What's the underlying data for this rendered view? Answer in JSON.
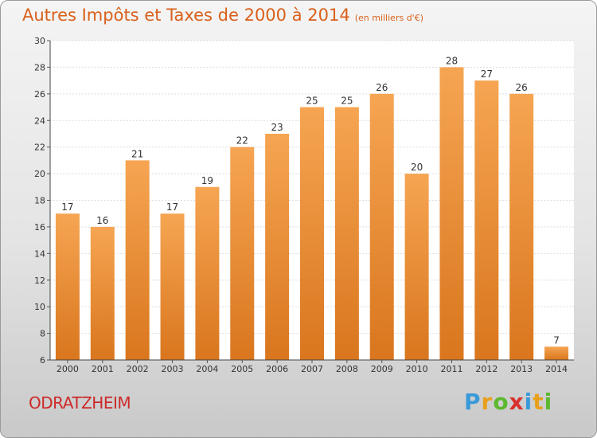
{
  "title": "Autres Impôts et Taxes de 2000 à 2014",
  "subtitle": "(en milliers d'€)",
  "commune": "ODRATZHEIM",
  "logo": {
    "letters": [
      "P",
      "r",
      "o",
      "x",
      "i",
      "t",
      "i"
    ],
    "colors": [
      "#3a9ad9",
      "#e8a01c",
      "#5cb82e",
      "#d8312d",
      "#3a9ad9",
      "#e8a01c",
      "#5cb82e"
    ]
  },
  "colors": {
    "bar_top": "#f6a552",
    "bar_bottom": "#d9761e",
    "title": "#d9601a",
    "commune": "#cc2a2a"
  },
  "chart_data": {
    "type": "bar",
    "categories": [
      "2000",
      "2001",
      "2002",
      "2003",
      "2004",
      "2005",
      "2006",
      "2007",
      "2008",
      "2009",
      "2010",
      "2011",
      "2012",
      "2013",
      "2014"
    ],
    "values": [
      17,
      16,
      21,
      17,
      19,
      22,
      23,
      25,
      25,
      26,
      20,
      28,
      27,
      26,
      7
    ],
    "ylim": [
      6,
      30
    ],
    "yticks": [
      6,
      8,
      10,
      12,
      14,
      16,
      18,
      20,
      22,
      24,
      26,
      28,
      30
    ],
    "grid": true
  }
}
